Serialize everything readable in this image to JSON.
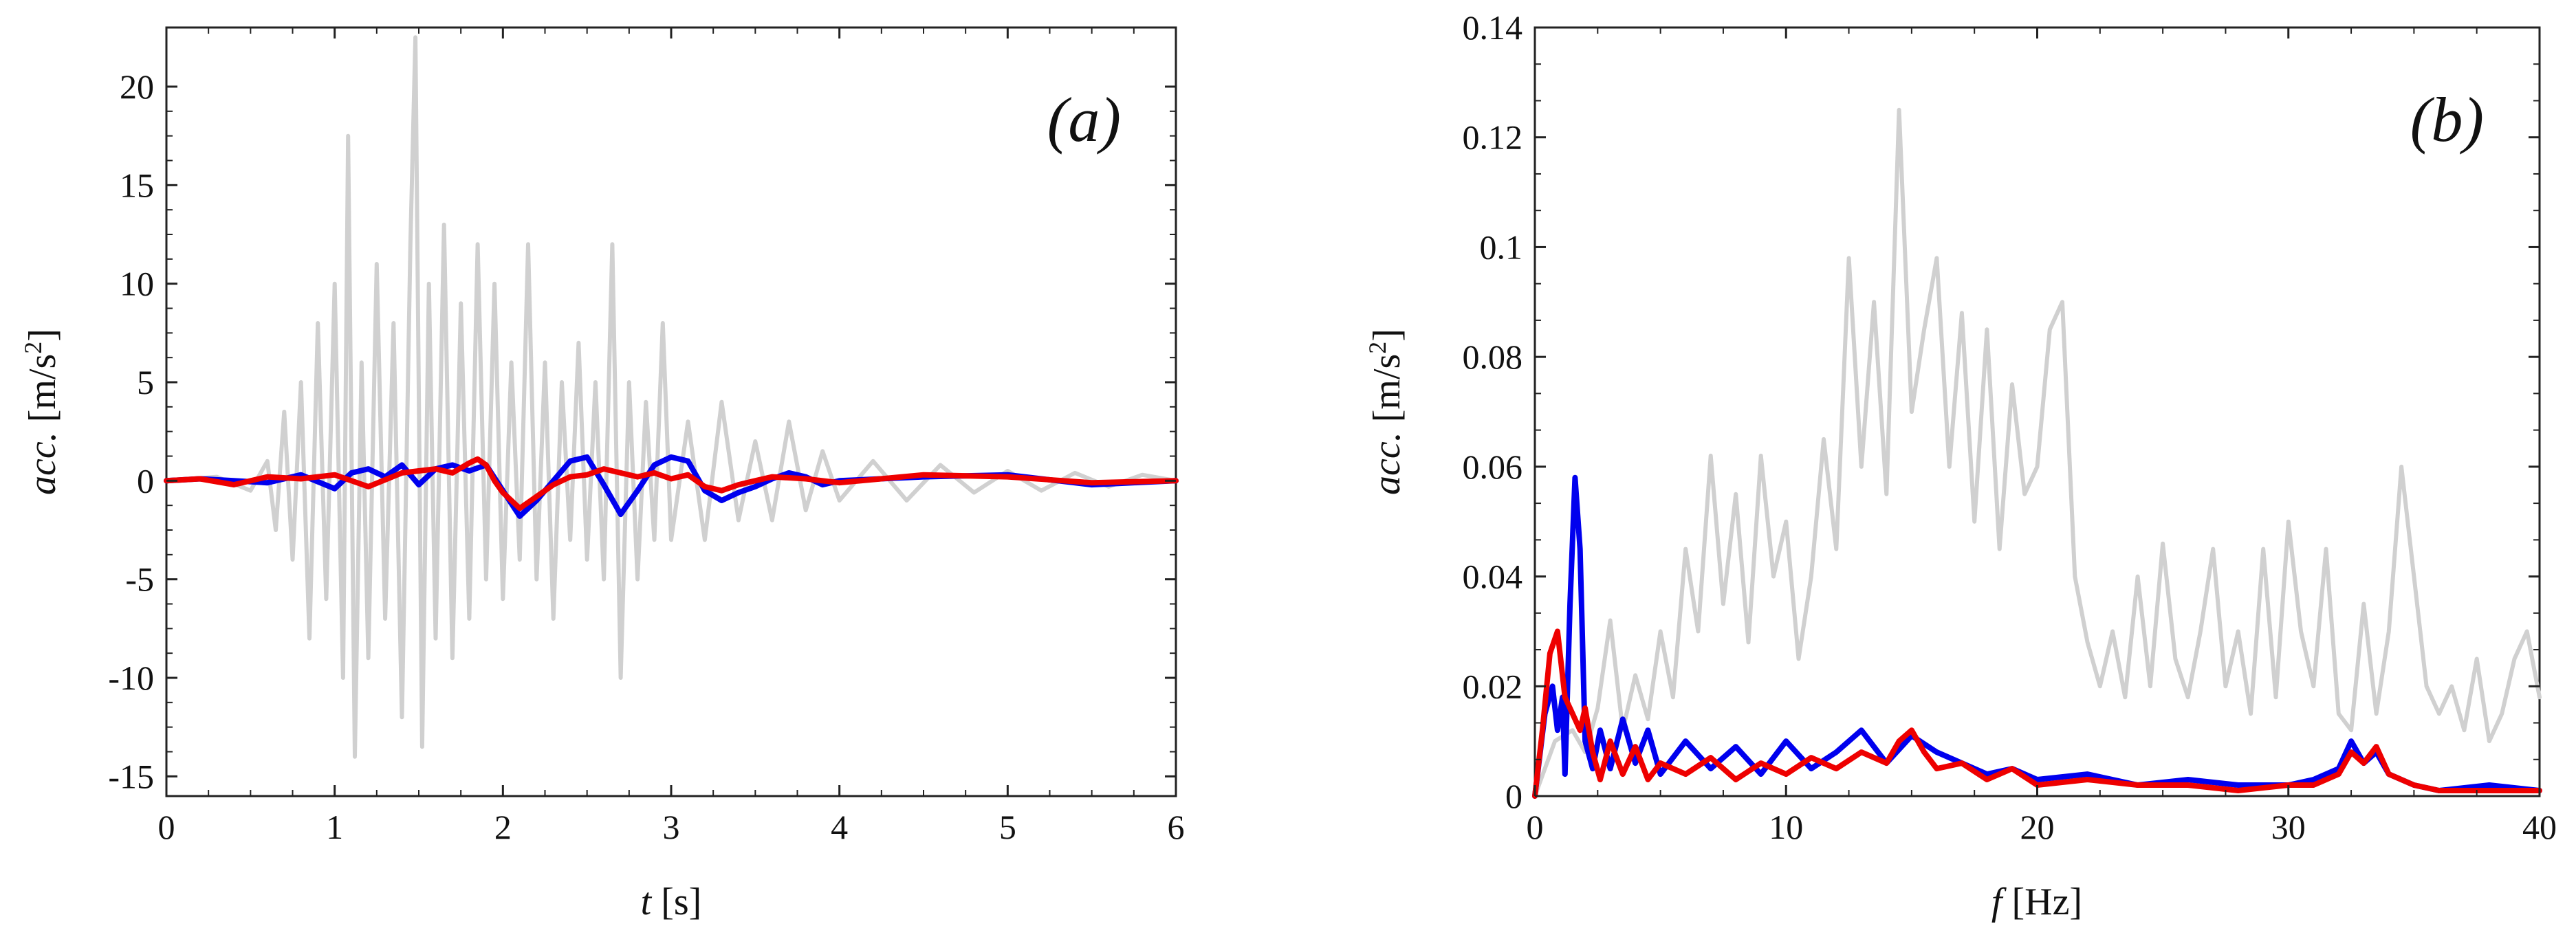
{
  "chart_data": [
    {
      "type": "line",
      "panel": "(a)",
      "xlabel_var": "t",
      "xlabel_unit": " [s]",
      "ylabel_var": "acc.",
      "ylabel_unit": " [m/s",
      "ylabel_unit_sup": "2",
      "ylabel_unit_end": "]",
      "xlim": [
        0,
        6
      ],
      "ylim": [
        -16,
        23
      ],
      "xticks": [
        0,
        1,
        2,
        3,
        4,
        5,
        6
      ],
      "xtick_labels": [
        "0",
        "1",
        "2",
        "3",
        "4",
        "5",
        "6"
      ],
      "yticks": [
        -15,
        -10,
        -5,
        0,
        5,
        10,
        15,
        20
      ],
      "ytick_labels": [
        "-15",
        "-10",
        "-5",
        "0",
        "5",
        "10",
        "15",
        "20"
      ],
      "grid": false,
      "series": [
        {
          "name": "gray",
          "color": "#d0d0d0",
          "x": [
            0.0,
            0.3,
            0.5,
            0.6,
            0.65,
            0.7,
            0.75,
            0.8,
            0.85,
            0.9,
            0.95,
            1.0,
            1.05,
            1.08,
            1.12,
            1.16,
            1.2,
            1.25,
            1.3,
            1.35,
            1.4,
            1.45,
            1.48,
            1.52,
            1.56,
            1.6,
            1.65,
            1.7,
            1.75,
            1.8,
            1.85,
            1.9,
            1.95,
            2.0,
            2.05,
            2.1,
            2.15,
            2.2,
            2.25,
            2.3,
            2.35,
            2.4,
            2.45,
            2.5,
            2.55,
            2.6,
            2.65,
            2.7,
            2.75,
            2.8,
            2.85,
            2.9,
            2.95,
            3.0,
            3.1,
            3.2,
            3.3,
            3.4,
            3.5,
            3.6,
            3.7,
            3.8,
            3.9,
            4.0,
            4.2,
            4.4,
            4.6,
            4.8,
            5.0,
            5.2,
            5.4,
            5.6,
            5.8,
            6.0
          ],
          "y": [
            0.0,
            0.2,
            -0.5,
            1.0,
            -2.5,
            3.5,
            -4.0,
            5.0,
            -8.0,
            8.0,
            -6.0,
            10.0,
            -10.0,
            17.5,
            -14.0,
            6.0,
            -9.0,
            11.0,
            -7.0,
            8.0,
            -12.0,
            12.0,
            22.5,
            -13.5,
            10.0,
            -8.0,
            13.0,
            -9.0,
            9.0,
            -7.0,
            12.0,
            -5.0,
            10.0,
            -6.0,
            6.0,
            -4.0,
            12.0,
            -5.0,
            6.0,
            -7.0,
            5.0,
            -3.0,
            7.0,
            -4.0,
            5.0,
            -5.0,
            12.0,
            -10.0,
            5.0,
            -5.0,
            4.0,
            -3.0,
            8.0,
            -3.0,
            3.0,
            -3.0,
            4.0,
            -2.0,
            2.0,
            -2.0,
            3.0,
            -1.5,
            1.5,
            -1.0,
            1.0,
            -1.0,
            0.8,
            -0.6,
            0.5,
            -0.5,
            0.4,
            -0.3,
            0.3,
            0.0
          ]
        },
        {
          "name": "blue",
          "color": "#0000ee",
          "x": [
            0.0,
            0.2,
            0.4,
            0.6,
            0.8,
            1.0,
            1.1,
            1.2,
            1.3,
            1.4,
            1.5,
            1.6,
            1.7,
            1.8,
            1.9,
            2.0,
            2.1,
            2.2,
            2.3,
            2.4,
            2.5,
            2.6,
            2.7,
            2.8,
            2.9,
            3.0,
            3.1,
            3.2,
            3.3,
            3.4,
            3.5,
            3.6,
            3.7,
            3.8,
            3.9,
            4.0,
            4.5,
            5.0,
            5.5,
            6.0
          ],
          "y": [
            0.0,
            0.1,
            0.0,
            -0.1,
            0.3,
            -0.4,
            0.4,
            0.6,
            0.2,
            0.8,
            -0.2,
            0.6,
            0.8,
            0.5,
            0.8,
            -0.5,
            -1.8,
            -1.0,
            0.0,
            1.0,
            1.2,
            -0.2,
            -1.7,
            -0.5,
            0.8,
            1.2,
            1.0,
            -0.5,
            -1.0,
            -0.6,
            -0.3,
            0.1,
            0.4,
            0.2,
            -0.2,
            0.0,
            0.2,
            0.3,
            -0.2,
            0.0
          ]
        },
        {
          "name": "red",
          "color": "#ee0000",
          "x": [
            0.0,
            0.2,
            0.4,
            0.6,
            0.8,
            1.0,
            1.2,
            1.4,
            1.6,
            1.7,
            1.8,
            1.85,
            1.9,
            1.95,
            2.0,
            2.05,
            2.1,
            2.2,
            2.3,
            2.4,
            2.5,
            2.6,
            2.7,
            2.8,
            2.9,
            3.0,
            3.1,
            3.2,
            3.3,
            3.4,
            3.5,
            3.6,
            3.8,
            4.0,
            4.5,
            5.0,
            5.5,
            6.0
          ],
          "y": [
            0.0,
            0.1,
            -0.2,
            0.2,
            0.1,
            0.3,
            -0.3,
            0.4,
            0.6,
            0.4,
            0.9,
            1.1,
            0.8,
            0.0,
            -0.6,
            -1.0,
            -1.4,
            -0.8,
            -0.2,
            0.2,
            0.3,
            0.6,
            0.4,
            0.2,
            0.4,
            0.1,
            0.3,
            -0.3,
            -0.5,
            -0.2,
            0.0,
            0.2,
            0.1,
            -0.1,
            0.3,
            0.2,
            -0.1,
            0.0
          ]
        }
      ]
    },
    {
      "type": "line",
      "panel": "(b)",
      "xlabel_var": "f",
      "xlabel_unit": " [Hz]",
      "ylabel_var": "acc.",
      "ylabel_unit": " [m/s",
      "ylabel_unit_sup": "2",
      "ylabel_unit_end": "]",
      "xlim": [
        0,
        40
      ],
      "ylim": [
        0,
        0.14
      ],
      "xticks": [
        0,
        10,
        20,
        30,
        40
      ],
      "xtick_labels": [
        "0",
        "10",
        "20",
        "30",
        "40"
      ],
      "yticks": [
        0,
        0.02,
        0.04,
        0.06,
        0.08,
        0.1,
        0.12,
        0.14
      ],
      "ytick_labels": [
        "0",
        "0.02",
        "0.04",
        "0.06",
        "0.08",
        "0.1",
        "0.12",
        "0.14"
      ],
      "grid": false,
      "series": [
        {
          "name": "gray",
          "color": "#d0d0d0",
          "x": [
            0.0,
            0.8,
            1.5,
            2.0,
            2.5,
            3.0,
            3.5,
            4.0,
            4.5,
            5.0,
            5.5,
            6.0,
            6.5,
            7.0,
            7.5,
            8.0,
            8.5,
            9.0,
            9.5,
            10.0,
            10.5,
            11.0,
            11.5,
            12.0,
            12.5,
            13.0,
            13.5,
            14.0,
            14.5,
            15.0,
            15.5,
            16.0,
            16.5,
            17.0,
            17.5,
            18.0,
            18.5,
            19.0,
            19.5,
            20.0,
            20.5,
            21.0,
            21.5,
            22.0,
            22.5,
            23.0,
            23.5,
            24.0,
            24.5,
            25.0,
            25.5,
            26.0,
            26.5,
            27.0,
            27.5,
            28.0,
            28.5,
            29.0,
            29.5,
            30.0,
            30.5,
            31.0,
            31.5,
            32.0,
            32.5,
            33.0,
            33.5,
            34.0,
            34.5,
            35.0,
            35.5,
            36.0,
            36.5,
            37.0,
            37.5,
            38.0,
            38.5,
            39.0,
            39.5,
            40.0
          ],
          "y": [
            0.0,
            0.01,
            0.012,
            0.008,
            0.016,
            0.032,
            0.012,
            0.022,
            0.014,
            0.03,
            0.018,
            0.045,
            0.03,
            0.062,
            0.035,
            0.055,
            0.028,
            0.062,
            0.04,
            0.05,
            0.025,
            0.04,
            0.065,
            0.045,
            0.098,
            0.06,
            0.09,
            0.055,
            0.125,
            0.07,
            0.085,
            0.098,
            0.06,
            0.088,
            0.05,
            0.085,
            0.045,
            0.075,
            0.055,
            0.06,
            0.085,
            0.09,
            0.04,
            0.028,
            0.02,
            0.03,
            0.018,
            0.04,
            0.02,
            0.046,
            0.025,
            0.018,
            0.03,
            0.045,
            0.02,
            0.03,
            0.015,
            0.045,
            0.018,
            0.05,
            0.03,
            0.02,
            0.045,
            0.015,
            0.012,
            0.035,
            0.015,
            0.03,
            0.06,
            0.04,
            0.02,
            0.015,
            0.02,
            0.012,
            0.025,
            0.01,
            0.015,
            0.025,
            0.03,
            0.018
          ]
        },
        {
          "name": "blue",
          "color": "#0000ee",
          "x": [
            0.0,
            0.4,
            0.7,
            0.9,
            1.1,
            1.2,
            1.4,
            1.6,
            1.8,
            2.0,
            2.3,
            2.6,
            3.0,
            3.5,
            4.0,
            4.5,
            5.0,
            6.0,
            7.0,
            8.0,
            9.0,
            10.0,
            11.0,
            12.0,
            13.0,
            14.0,
            15.0,
            16.0,
            17.0,
            18.0,
            19.0,
            20.0,
            22.0,
            24.0,
            26.0,
            28.0,
            30.0,
            31.0,
            32.0,
            32.5,
            33.0,
            33.5,
            34.0,
            35.0,
            36.0,
            38.0,
            40.0
          ],
          "y": [
            0.0,
            0.015,
            0.02,
            0.012,
            0.018,
            0.004,
            0.035,
            0.058,
            0.045,
            0.01,
            0.005,
            0.012,
            0.005,
            0.014,
            0.006,
            0.012,
            0.004,
            0.01,
            0.005,
            0.009,
            0.004,
            0.01,
            0.005,
            0.008,
            0.012,
            0.006,
            0.011,
            0.008,
            0.006,
            0.004,
            0.005,
            0.003,
            0.004,
            0.002,
            0.003,
            0.002,
            0.002,
            0.003,
            0.005,
            0.01,
            0.006,
            0.008,
            0.004,
            0.002,
            0.001,
            0.002,
            0.001
          ]
        },
        {
          "name": "red",
          "color": "#ee0000",
          "x": [
            0.0,
            0.3,
            0.6,
            0.9,
            1.2,
            1.5,
            1.8,
            2.0,
            2.3,
            2.6,
            3.0,
            3.5,
            4.0,
            4.5,
            5.0,
            6.0,
            7.0,
            8.0,
            9.0,
            10.0,
            11.0,
            12.0,
            13.0,
            14.0,
            14.5,
            15.0,
            15.5,
            16.0,
            17.0,
            18.0,
            19.0,
            20.0,
            22.0,
            24.0,
            26.0,
            28.0,
            30.0,
            31.0,
            32.0,
            32.5,
            33.0,
            33.5,
            34.0,
            35.0,
            36.0,
            38.0,
            40.0
          ],
          "y": [
            0.0,
            0.012,
            0.026,
            0.03,
            0.018,
            0.015,
            0.012,
            0.016,
            0.008,
            0.003,
            0.01,
            0.004,
            0.009,
            0.003,
            0.006,
            0.004,
            0.007,
            0.003,
            0.006,
            0.004,
            0.007,
            0.005,
            0.008,
            0.006,
            0.01,
            0.012,
            0.008,
            0.005,
            0.006,
            0.003,
            0.005,
            0.002,
            0.003,
            0.002,
            0.002,
            0.001,
            0.002,
            0.002,
            0.004,
            0.008,
            0.006,
            0.009,
            0.004,
            0.002,
            0.001,
            0.001,
            0.001
          ]
        }
      ]
    }
  ]
}
